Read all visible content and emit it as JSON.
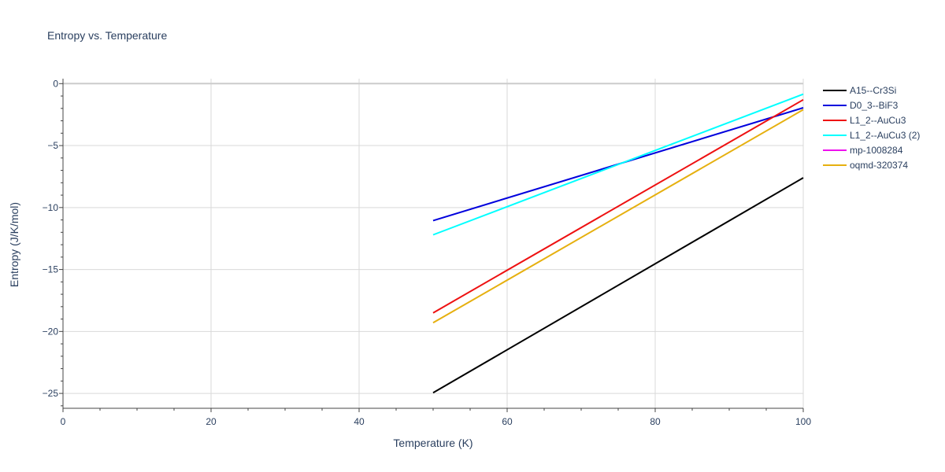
{
  "chart_data": {
    "type": "line",
    "title": "Entropy vs. Temperature",
    "xlabel": "Temperature (K)",
    "ylabel": "Entropy (J/K/mol)",
    "xlim": [
      0,
      100
    ],
    "ylim": [
      -26.2,
      0.4
    ],
    "x_ticks": [
      "0",
      "20",
      "40",
      "60",
      "80",
      "100"
    ],
    "y_ticks": [
      "0",
      "−5",
      "−10",
      "−15",
      "−20",
      "−25"
    ],
    "grid": true,
    "legend_position": "top-right",
    "series": [
      {
        "name": "A15--Cr3Si",
        "color": "#000000",
        "x": [
          50,
          100
        ],
        "y": [
          -24.95,
          -7.6
        ]
      },
      {
        "name": "D0_3--BiF3",
        "color": "#0000dd",
        "x": [
          50,
          100
        ],
        "y": [
          -11.05,
          -1.95
        ]
      },
      {
        "name": "L1_2--AuCu3",
        "color": "#ee1111",
        "x": [
          50,
          100
        ],
        "y": [
          -18.5,
          -1.3
        ]
      },
      {
        "name": "L1_2--AuCu3 (2)",
        "color": "#00ffff",
        "x": [
          50,
          100
        ],
        "y": [
          -12.2,
          -0.85
        ]
      },
      {
        "name": "mp-1008284",
        "color": "#ee11ee",
        "x": [],
        "y": []
      },
      {
        "name": "oqmd-320374",
        "color": "#e6b00f",
        "x": [
          50,
          100
        ],
        "y": [
          -19.3,
          -2.1
        ]
      }
    ]
  }
}
